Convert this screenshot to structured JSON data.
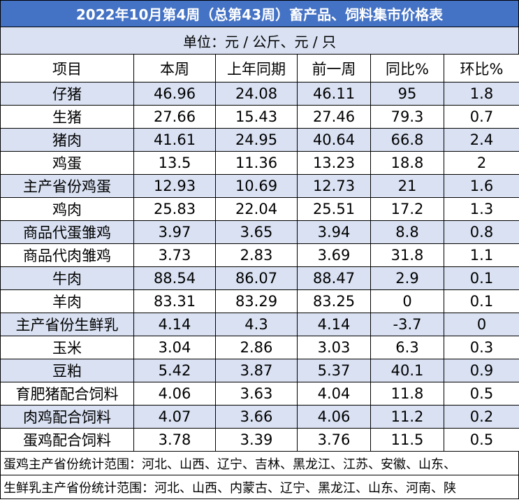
{
  "title": "2022年10月第4周（总第43周）畜产品、饲料集市价格表",
  "unit": "单位：元 / 公斤、元 / 只",
  "table": {
    "header": [
      "项目",
      "本周",
      "上年同期",
      "前一周",
      "同比%",
      "环比%"
    ],
    "rows": [
      [
        "仔猪",
        "46.96",
        "24.08",
        "46.11",
        "95",
        "1.8"
      ],
      [
        "生猪",
        "27.66",
        "15.43",
        "27.46",
        "79.3",
        "0.7"
      ],
      [
        "猪肉",
        "41.61",
        "24.95",
        "40.64",
        "66.8",
        "2.4"
      ],
      [
        "鸡蛋",
        "13.5",
        "11.36",
        "13.23",
        "18.8",
        "2"
      ],
      [
        "主产省份鸡蛋",
        "12.93",
        "10.69",
        "12.73",
        "21",
        "1.6"
      ],
      [
        "鸡肉",
        "25.83",
        "22.04",
        "25.51",
        "17.2",
        "1.3"
      ],
      [
        "商品代蛋雏鸡",
        "3.97",
        "3.65",
        "3.94",
        "8.8",
        "0.8"
      ],
      [
        "商品代肉雏鸡",
        "3.73",
        "2.83",
        "3.69",
        "31.8",
        "1.1"
      ],
      [
        "牛肉",
        "88.54",
        "86.07",
        "88.47",
        "2.9",
        "0.1"
      ],
      [
        "羊肉",
        "83.31",
        "83.29",
        "83.25",
        "0",
        "0.1"
      ],
      [
        "主产省份生鲜乳",
        "4.14",
        "4.3",
        "4.14",
        "-3.7",
        "0"
      ],
      [
        "玉米",
        "3.04",
        "2.86",
        "3.03",
        "6.3",
        "0.3"
      ],
      [
        "豆粕",
        "5.42",
        "3.87",
        "5.37",
        "40.1",
        "0.9"
      ],
      [
        "育肥猪配合饲料",
        "4.06",
        "3.63",
        "4.04",
        "11.8",
        "0.5"
      ],
      [
        "肉鸡配合饲料",
        "4.07",
        "3.66",
        "4.06",
        "11.2",
        "0.2"
      ],
      [
        "蛋鸡配合饲料",
        "3.78",
        "3.39",
        "3.76",
        "11.5",
        "0.5"
      ]
    ]
  },
  "notes": [
    "蛋鸡主产省份统计范围：河北、山西、辽宁、吉林、黑龙江、江苏、安徽、山东、",
    "生鲜乳主产省份统计范围：河北、山西、内蒙古、辽宁、黑龙江、山东、河南、陕"
  ]
}
